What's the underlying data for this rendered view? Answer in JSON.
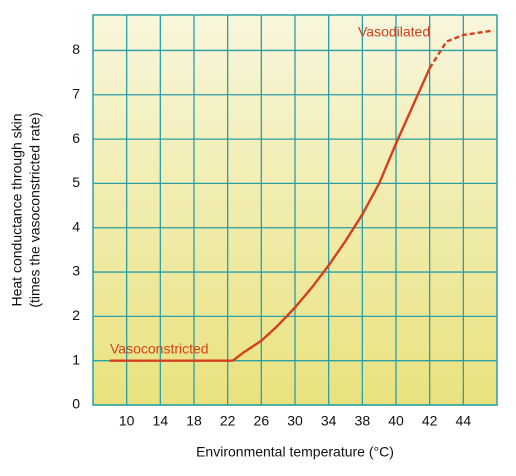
{
  "chart_data": {
    "type": "line",
    "x_label": "Environmental temperature (°C)",
    "y_label": [
      "Heat conductance through skin",
      "(times the vasoconstricted rate)"
    ],
    "xticks": [
      10,
      14,
      18,
      22,
      26,
      30,
      34,
      38,
      40,
      42,
      44
    ],
    "xlim": [
      6,
      46
    ],
    "ylim": [
      0,
      8.8
    ],
    "yticks": [
      0,
      1,
      2,
      3,
      4,
      5,
      6,
      7,
      8
    ],
    "grid": true,
    "series": [
      {
        "color": "#d4401e",
        "dashed": false,
        "x": [
          8,
          22.6,
          24,
          26,
          28,
          30,
          32,
          34,
          36,
          38,
          39,
          40,
          41,
          42
        ],
        "values": [
          1,
          1,
          1.2,
          1.45,
          1.8,
          2.2,
          2.65,
          3.15,
          3.7,
          4.3,
          5.0,
          5.9,
          6.75,
          7.6
        ]
      },
      {
        "color": "#d4401e",
        "dashed": true,
        "x": [
          42,
          43,
          44,
          45.8
        ],
        "values": [
          7.6,
          8.2,
          8.35,
          8.45
        ]
      }
    ],
    "annotations": [
      "Vasoconstricted",
      "Vasodilated"
    ]
  }
}
